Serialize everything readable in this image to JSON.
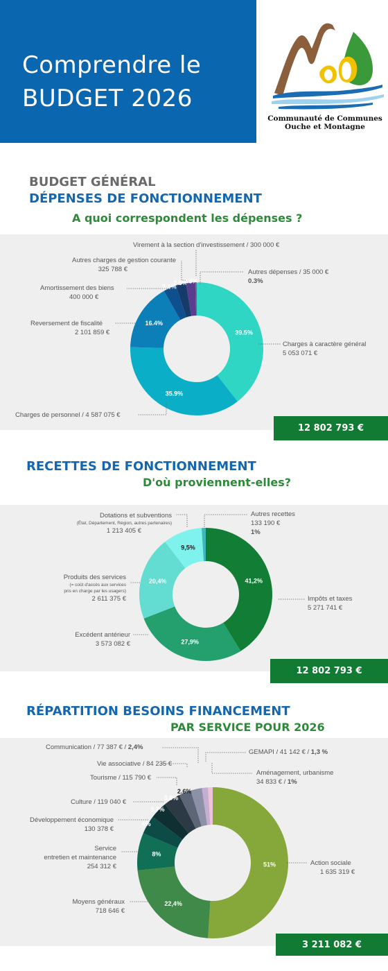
{
  "header": {
    "title_line1": "Comprendre le",
    "title_line2": "BUDGET 2026",
    "org_line1": "Communauté de Communes",
    "org_line2": "Ouche et Montagne",
    "colors": {
      "banner": "#0b66b0",
      "logo_brown": "#8b5e3c",
      "logo_green": "#3a9a3a",
      "logo_yellow": "#f2c200",
      "logo_blue": "#1a6db3"
    }
  },
  "section1": {
    "title1": "BUDGET GÉNÉRAL",
    "title2": "DÉPENSES DE FONCTIONNEMENT",
    "subtitle": "A quoi correspondent les dépenses ?",
    "total": "12 802 793 €",
    "labels": {
      "virement": "Virement à la section d'investissement / 300 000 €",
      "autres_gestion_1": "Autres charges de gestion courante",
      "autres_gestion_2": "325 788 €",
      "amort_1": "Amortissement des biens",
      "amort_2": "400 000 €",
      "revers_1": "Reversement de fiscalité",
      "revers_2": "2 101 859 €",
      "personnel": "Charges de personnel / 4 587 075 €",
      "autres_dep_1": "Autres dépenses / 35 000 €",
      "autres_dep_2": "0.3%",
      "charges_gen_1": "Charges à caractère général",
      "charges_gen_2": "5 053 071 €"
    }
  },
  "section2": {
    "title": "RECETTES DE FONCTIONNEMENT",
    "subtitle": "D'où proviennent-elles?",
    "total": "12 802 793 €",
    "labels": {
      "dotations_1": "Dotations et subventions",
      "dotations_2": "(État, Département, Région, autres partenaires)",
      "dotations_3": "1 213 405 €",
      "autres_rec_1": "Autres recettes",
      "autres_rec_2": "133 190 €",
      "autres_rec_3": "1%",
      "produits_1": "Produits des services",
      "produits_2": "(= coût d'accès aux services",
      "produits_3": "pris en charge par les usagers)",
      "produits_4": "2 611 375 €",
      "impots_1": "Impôts et taxes",
      "impots_2": "5 271 741 €",
      "excedent_1": "Excédent antérieur",
      "excedent_2": "3 573 082 €"
    }
  },
  "section3": {
    "title": "RÉPARTITION BESOINS FINANCEMENT",
    "subtitle": "PAR SERVICE POUR 2026",
    "total": "3 211 082 €",
    "labels": {
      "communication_1": "Communication / 77 387 € / ",
      "communication_2": "2,4%",
      "gemapi_1": "GEMAPI / 41 142 € / ",
      "gemapi_2": "1,3 %",
      "vie_asso": "Vie associative / 84 235 €",
      "amenag_1": "Aménagement, urbanisme",
      "amenag_2": "34 833 € / ",
      "amenag_3": "1%",
      "tourisme": "Tourisme / 115 790 €",
      "culture": "Culture / 119 040 €",
      "devel_1": "Développement économique",
      "devel_2": "130 378 €",
      "service_1": "Service",
      "service_2": "entretien et maintenance",
      "service_3": "254 312 €",
      "action_1": "Action sociale",
      "action_2": "1 635 319 €",
      "moyens_1": "Moyens généraux",
      "moyens_2": "718 646 €"
    }
  },
  "chart_data": [
    {
      "type": "pie",
      "categories": [
        "Charges à caractère général",
        "Charges de personnel",
        "Reversement de fiscalité",
        "Amortissement des biens",
        "Autres charges de gestion courante",
        "Virement à la section d'investissement",
        "Autres dépenses"
      ],
      "values": [
        39.5,
        35.9,
        16.4,
        3.1,
        2.5,
        2.3,
        0.3
      ],
      "value_labels": [
        "39.5%",
        "35.9%",
        "16.4%",
        "3.1%",
        "2.5%",
        "2.3%",
        ""
      ],
      "colors": [
        "#2fd6c3",
        "#0aaec6",
        "#0d7fb8",
        "#0e4f8d",
        "#163b6b",
        "#5a3d8c",
        "#7d5aa8"
      ]
    },
    {
      "type": "pie",
      "categories": [
        "Impôts et taxes",
        "Excédent antérieur",
        "Produits des services",
        "Dotations et subventions",
        "Autres recettes"
      ],
      "values": [
        41.2,
        27.9,
        20.4,
        9.5,
        1
      ],
      "value_labels": [
        "41,2%",
        "27,9%",
        "20,4%",
        "9,5%",
        ""
      ],
      "colors": [
        "#127d35",
        "#24a06f",
        "#63ddd1",
        "#7ff2ee",
        "#3db8b8"
      ]
    },
    {
      "type": "pie",
      "categories": [
        "Action sociale",
        "Moyens généraux",
        "Service entretien et maintenance",
        "Développement économique",
        "Culture",
        "Tourisme",
        "Vie associative",
        "Communication",
        "GEMAPI",
        "Aménagement, urbanisme"
      ],
      "values": [
        51,
        22.4,
        8,
        4,
        3.7,
        3.6,
        2.6,
        2.4,
        1.3,
        1
      ],
      "value_labels": [
        "51%",
        "22,4%",
        "8%",
        "4%",
        "3.7%",
        "3.6%",
        "2.6%",
        "",
        "",
        ""
      ],
      "colors": [
        "#86a73a",
        "#3f8a48",
        "#106f55",
        "#0d4b46",
        "#0f2f33",
        "#2c3a45",
        "#5d6676",
        "#8c91a8",
        "#c6aed0",
        "#efc4d8"
      ]
    }
  ]
}
